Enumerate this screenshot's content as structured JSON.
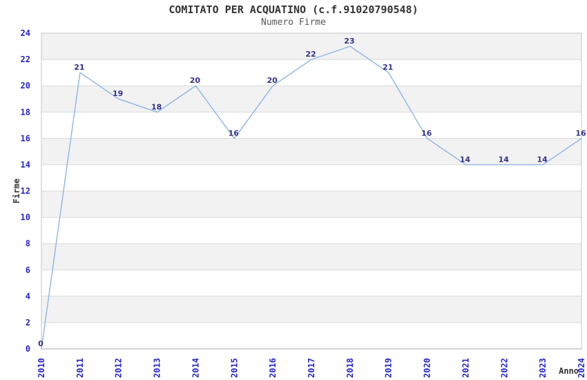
{
  "chart_data": {
    "type": "line",
    "title": "COMITATO PER ACQUATINO (c.f.91020790548)",
    "subtitle": "Numero Firme",
    "xlabel": "Anno",
    "ylabel": "Firme",
    "categories": [
      "2010",
      "2011",
      "2012",
      "2013",
      "2014",
      "2015",
      "2016",
      "2017",
      "2018",
      "2019",
      "2020",
      "2021",
      "2022",
      "2023",
      "2024"
    ],
    "series": [
      {
        "name": "Numero Firme",
        "values": [
          0,
          21,
          19,
          18,
          20,
          16,
          20,
          22,
          23,
          21,
          16,
          14,
          14,
          14,
          16
        ]
      }
    ],
    "point_labels": true,
    "ylim": [
      0,
      24
    ],
    "ytick_step": 2,
    "yticks": [
      0,
      2,
      4,
      6,
      8,
      10,
      12,
      14,
      16,
      18,
      20,
      22,
      24
    ],
    "grid": "horizontal",
    "banding": "alternating-gray-horizontal-bands-every-2-units",
    "legend": "none",
    "x_tick_rotation": -90,
    "colors": {
      "line": "#8cb4e6",
      "tick_label": "#2424d0",
      "point_label": "#32328c",
      "band": "#f2f2f2",
      "grid": "#d9d9d9",
      "border": "#c6c6c6",
      "bottom_axis": "#a8a8a8",
      "title": "#333333",
      "subtitle": "#575757",
      "axis_title": "#333333",
      "background": "#ffffff"
    }
  }
}
